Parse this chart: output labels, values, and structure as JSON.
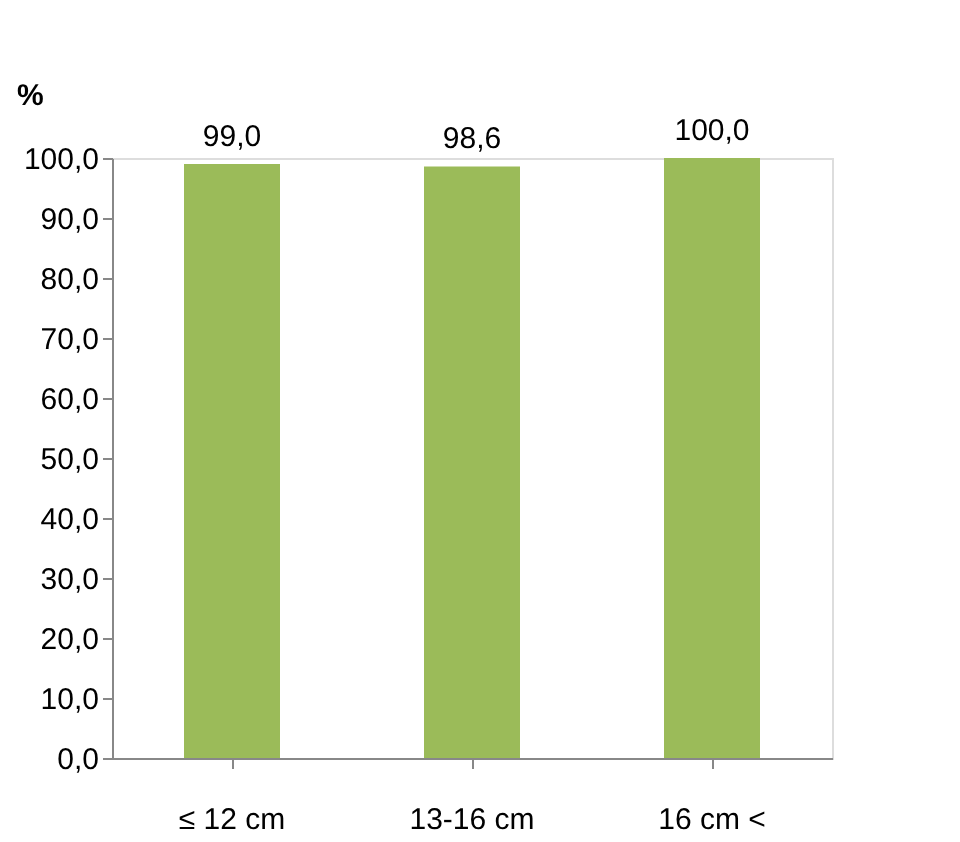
{
  "chart_data": {
    "type": "bar",
    "ylabel": "%",
    "categories": [
      "≤ 12 cm",
      "13-16 cm",
      "16 cm <"
    ],
    "series": [
      {
        "color": "#9bbb59",
        "values": [
          99.0,
          98.6,
          100.0
        ]
      }
    ],
    "value_labels": [
      "99,0",
      "98,6",
      "100,0"
    ],
    "ylim": [
      0,
      100
    ],
    "yticks": [
      {
        "value": 0,
        "label": "0,0"
      },
      {
        "value": 10,
        "label": "10,0"
      },
      {
        "value": 20,
        "label": "20,0"
      },
      {
        "value": 30,
        "label": "30,0"
      },
      {
        "value": 40,
        "label": "40,0"
      },
      {
        "value": 50,
        "label": "50,0"
      },
      {
        "value": 60,
        "label": "60,0"
      },
      {
        "value": 70,
        "label": "70,0"
      },
      {
        "value": 80,
        "label": "80,0"
      },
      {
        "value": 90,
        "label": "90,0"
      },
      {
        "value": 100,
        "label": "100,0"
      }
    ],
    "grid": false
  }
}
